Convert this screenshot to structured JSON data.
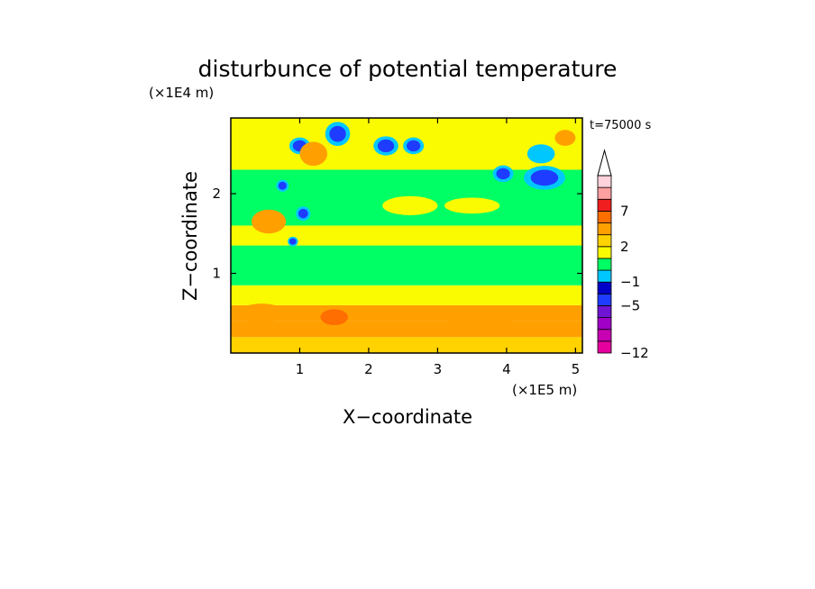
{
  "chart_data": {
    "type": "heatmap",
    "title": "disturbunce of potential temperature",
    "xlabel": "X−coordinate",
    "ylabel": "Z−coordinate",
    "x_unit_label": "(×1E5 m)",
    "y_unit_label": "(×1E4 m)",
    "time_label": "t=75000 s",
    "xlim": [
      0,
      5.1
    ],
    "ylim": [
      0,
      2.95
    ],
    "x_ticks": [
      1,
      2,
      3,
      4,
      5
    ],
    "y_ticks": [
      1,
      2
    ],
    "x_tick_labels": [
      "1",
      "2",
      "3",
      "4",
      "5"
    ],
    "y_tick_labels": [
      "1",
      "2"
    ],
    "colorbar": {
      "levels": [
        -12,
        -11,
        -9,
        -7,
        -5,
        -3,
        -1,
        0,
        1,
        2,
        3,
        5,
        7,
        9,
        11
      ],
      "labeled_levels": [
        "7",
        "2",
        "−1",
        "−5",
        "−12"
      ],
      "colors": [
        "#e6009e",
        "#c800b4",
        "#a000c8",
        "#6e14d2",
        "#1e3cff",
        "#0000c8",
        "#00c8ff",
        "#00ff64",
        "#fafa00",
        "#ffd200",
        "#ffa000",
        "#ff6e00",
        "#f01e1e",
        "#ffa0a0",
        "#ffd2dc"
      ],
      "extend": "max"
    },
    "grid": false,
    "field_sketch": [
      {
        "x0": 0.0,
        "x1": 5.1,
        "z0": 0.0,
        "z1": 0.2,
        "level": 2
      },
      {
        "x0": 0.0,
        "x1": 5.1,
        "z0": 0.2,
        "z1": 0.4,
        "level": 3
      },
      {
        "x0": 0.0,
        "x1": 5.1,
        "z0": 0.4,
        "z1": 0.6,
        "level": 3
      },
      {
        "x0": 0.0,
        "x1": 5.1,
        "z0": 0.6,
        "z1": 0.85,
        "level": 1
      },
      {
        "x0": 0.0,
        "x1": 5.1,
        "z0": 0.85,
        "z1": 1.35,
        "level": 0
      },
      {
        "x0": 0.0,
        "x1": 5.1,
        "z0": 1.35,
        "z1": 1.6,
        "level": 1
      },
      {
        "x0": 0.0,
        "x1": 5.1,
        "z0": 1.6,
        "z1": 2.3,
        "level": 0
      },
      {
        "x0": 0.0,
        "x1": 5.1,
        "z0": 2.3,
        "z1": 2.95,
        "level": 1
      }
    ],
    "features": [
      {
        "x": 1.55,
        "z": 2.75,
        "rx": 0.12,
        "rz": 0.1,
        "level": -5
      },
      {
        "x": 2.25,
        "z": 2.6,
        "rx": 0.12,
        "rz": 0.08,
        "level": -5
      },
      {
        "x": 2.65,
        "z": 2.6,
        "rx": 0.1,
        "rz": 0.07,
        "level": -5
      },
      {
        "x": 4.55,
        "z": 2.2,
        "rx": 0.2,
        "rz": 0.1,
        "level": -5
      },
      {
        "x": 3.95,
        "z": 2.25,
        "rx": 0.1,
        "rz": 0.07,
        "level": -5
      },
      {
        "x": 1.0,
        "z": 2.6,
        "rx": 0.1,
        "rz": 0.07,
        "level": -5
      },
      {
        "x": 0.75,
        "z": 2.1,
        "rx": 0.06,
        "rz": 0.05,
        "level": -5
      },
      {
        "x": 1.05,
        "z": 1.75,
        "rx": 0.07,
        "rz": 0.06,
        "level": -5
      },
      {
        "x": 0.9,
        "z": 1.4,
        "rx": 0.05,
        "rz": 0.04,
        "level": -5
      },
      {
        "x": 4.5,
        "z": 2.5,
        "rx": 0.2,
        "rz": 0.12,
        "level": -1
      },
      {
        "x": 1.2,
        "z": 2.5,
        "rx": 0.2,
        "rz": 0.15,
        "level": 3
      },
      {
        "x": 4.85,
        "z": 2.7,
        "rx": 0.15,
        "rz": 0.1,
        "level": 3
      },
      {
        "x": 0.45,
        "z": 0.5,
        "rx": 0.35,
        "rz": 0.12,
        "level": 3
      },
      {
        "x": 1.5,
        "z": 0.45,
        "rx": 0.2,
        "rz": 0.1,
        "level": 5
      },
      {
        "x": 3.6,
        "z": 0.45,
        "rx": 0.5,
        "rz": 0.12,
        "level": 3
      },
      {
        "x": 0.55,
        "z": 1.65,
        "rx": 0.25,
        "rz": 0.15,
        "level": 3
      },
      {
        "x": 2.6,
        "z": 1.85,
        "rx": 0.4,
        "rz": 0.12,
        "level": 1
      },
      {
        "x": 3.5,
        "z": 1.85,
        "rx": 0.4,
        "rz": 0.1,
        "level": 1
      }
    ]
  }
}
